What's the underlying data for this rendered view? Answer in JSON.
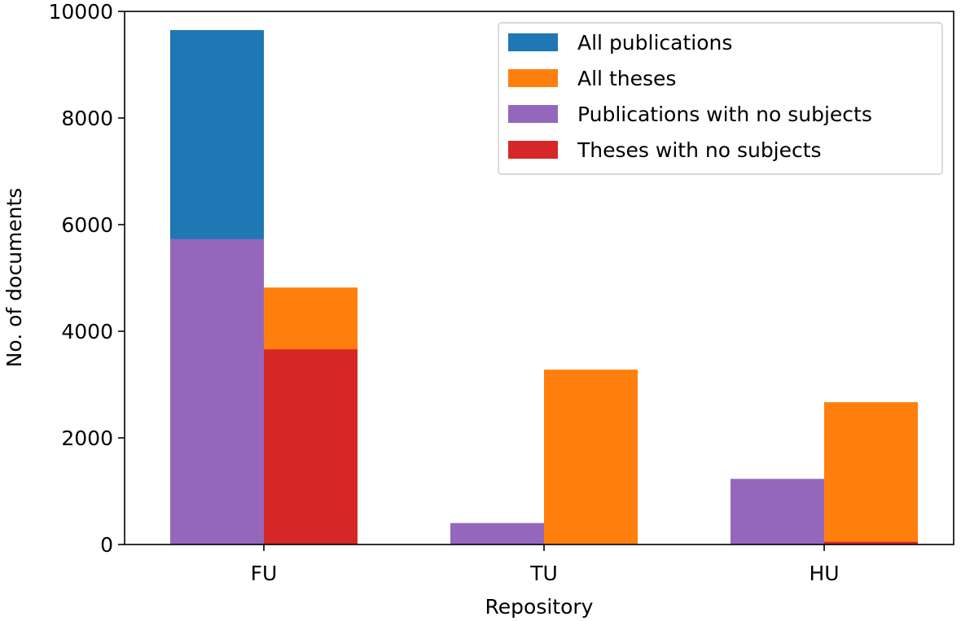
{
  "chart_data": {
    "type": "bar",
    "xlabel": "Repository",
    "ylabel": "No. of documents",
    "categories": [
      "FU",
      "TU",
      "HU"
    ],
    "ylim": [
      0,
      10000
    ],
    "yticks": [
      0,
      2000,
      4000,
      6000,
      8000,
      10000
    ],
    "grid": false,
    "legend_position": "top-right",
    "series": [
      {
        "name": "All publications",
        "color": "#1f77b4",
        "group": "publications",
        "values": [
          9650,
          400,
          1230
        ]
      },
      {
        "name": "All theses",
        "color": "#ff7f0e",
        "group": "theses",
        "values": [
          4820,
          3280,
          2670
        ]
      },
      {
        "name": "Publications with no subjects",
        "color": "#9467bd",
        "group": "publications",
        "values": [
          5730,
          400,
          1230
        ]
      },
      {
        "name": "Theses with no subjects",
        "color": "#d62728",
        "group": "theses",
        "values": [
          3660,
          0,
          50
        ]
      }
    ]
  }
}
